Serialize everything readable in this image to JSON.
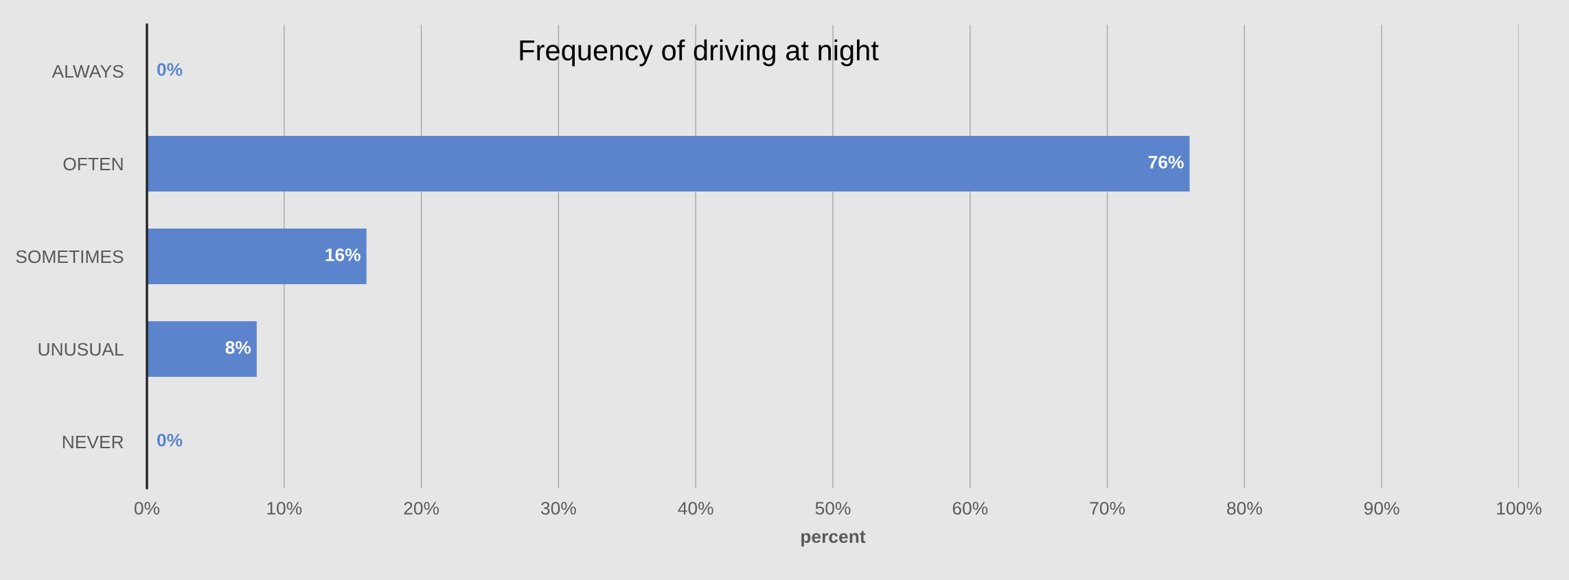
{
  "chart_data": {
    "type": "bar",
    "orientation": "horizontal",
    "title": "Frequency of driving at night",
    "xlabel": "percent",
    "categories": [
      "ALWAYS",
      "OFTEN",
      "SOMETIMES",
      "UNUSUAL",
      "NEVER"
    ],
    "values": [
      0,
      76,
      16,
      8,
      0
    ],
    "color": "#5b84cd",
    "value_labels": [
      "0%",
      "76%",
      "16%",
      "8%",
      "0%"
    ],
    "xlim": [
      0,
      100
    ],
    "xticks": [
      {
        "value": 0,
        "label": "0%"
      },
      {
        "value": 10,
        "label": "10%"
      },
      {
        "value": 20,
        "label": "20%"
      },
      {
        "value": 30,
        "label": "30%"
      },
      {
        "value": 40,
        "label": "40%"
      },
      {
        "value": 50,
        "label": "50%"
      },
      {
        "value": 60,
        "label": "60%"
      },
      {
        "value": 70,
        "label": "70%"
      },
      {
        "value": 80,
        "label": "80%"
      },
      {
        "value": 90,
        "label": "90%"
      },
      {
        "value": 100,
        "label": "100%"
      }
    ],
    "grid": "x",
    "legend": false
  }
}
